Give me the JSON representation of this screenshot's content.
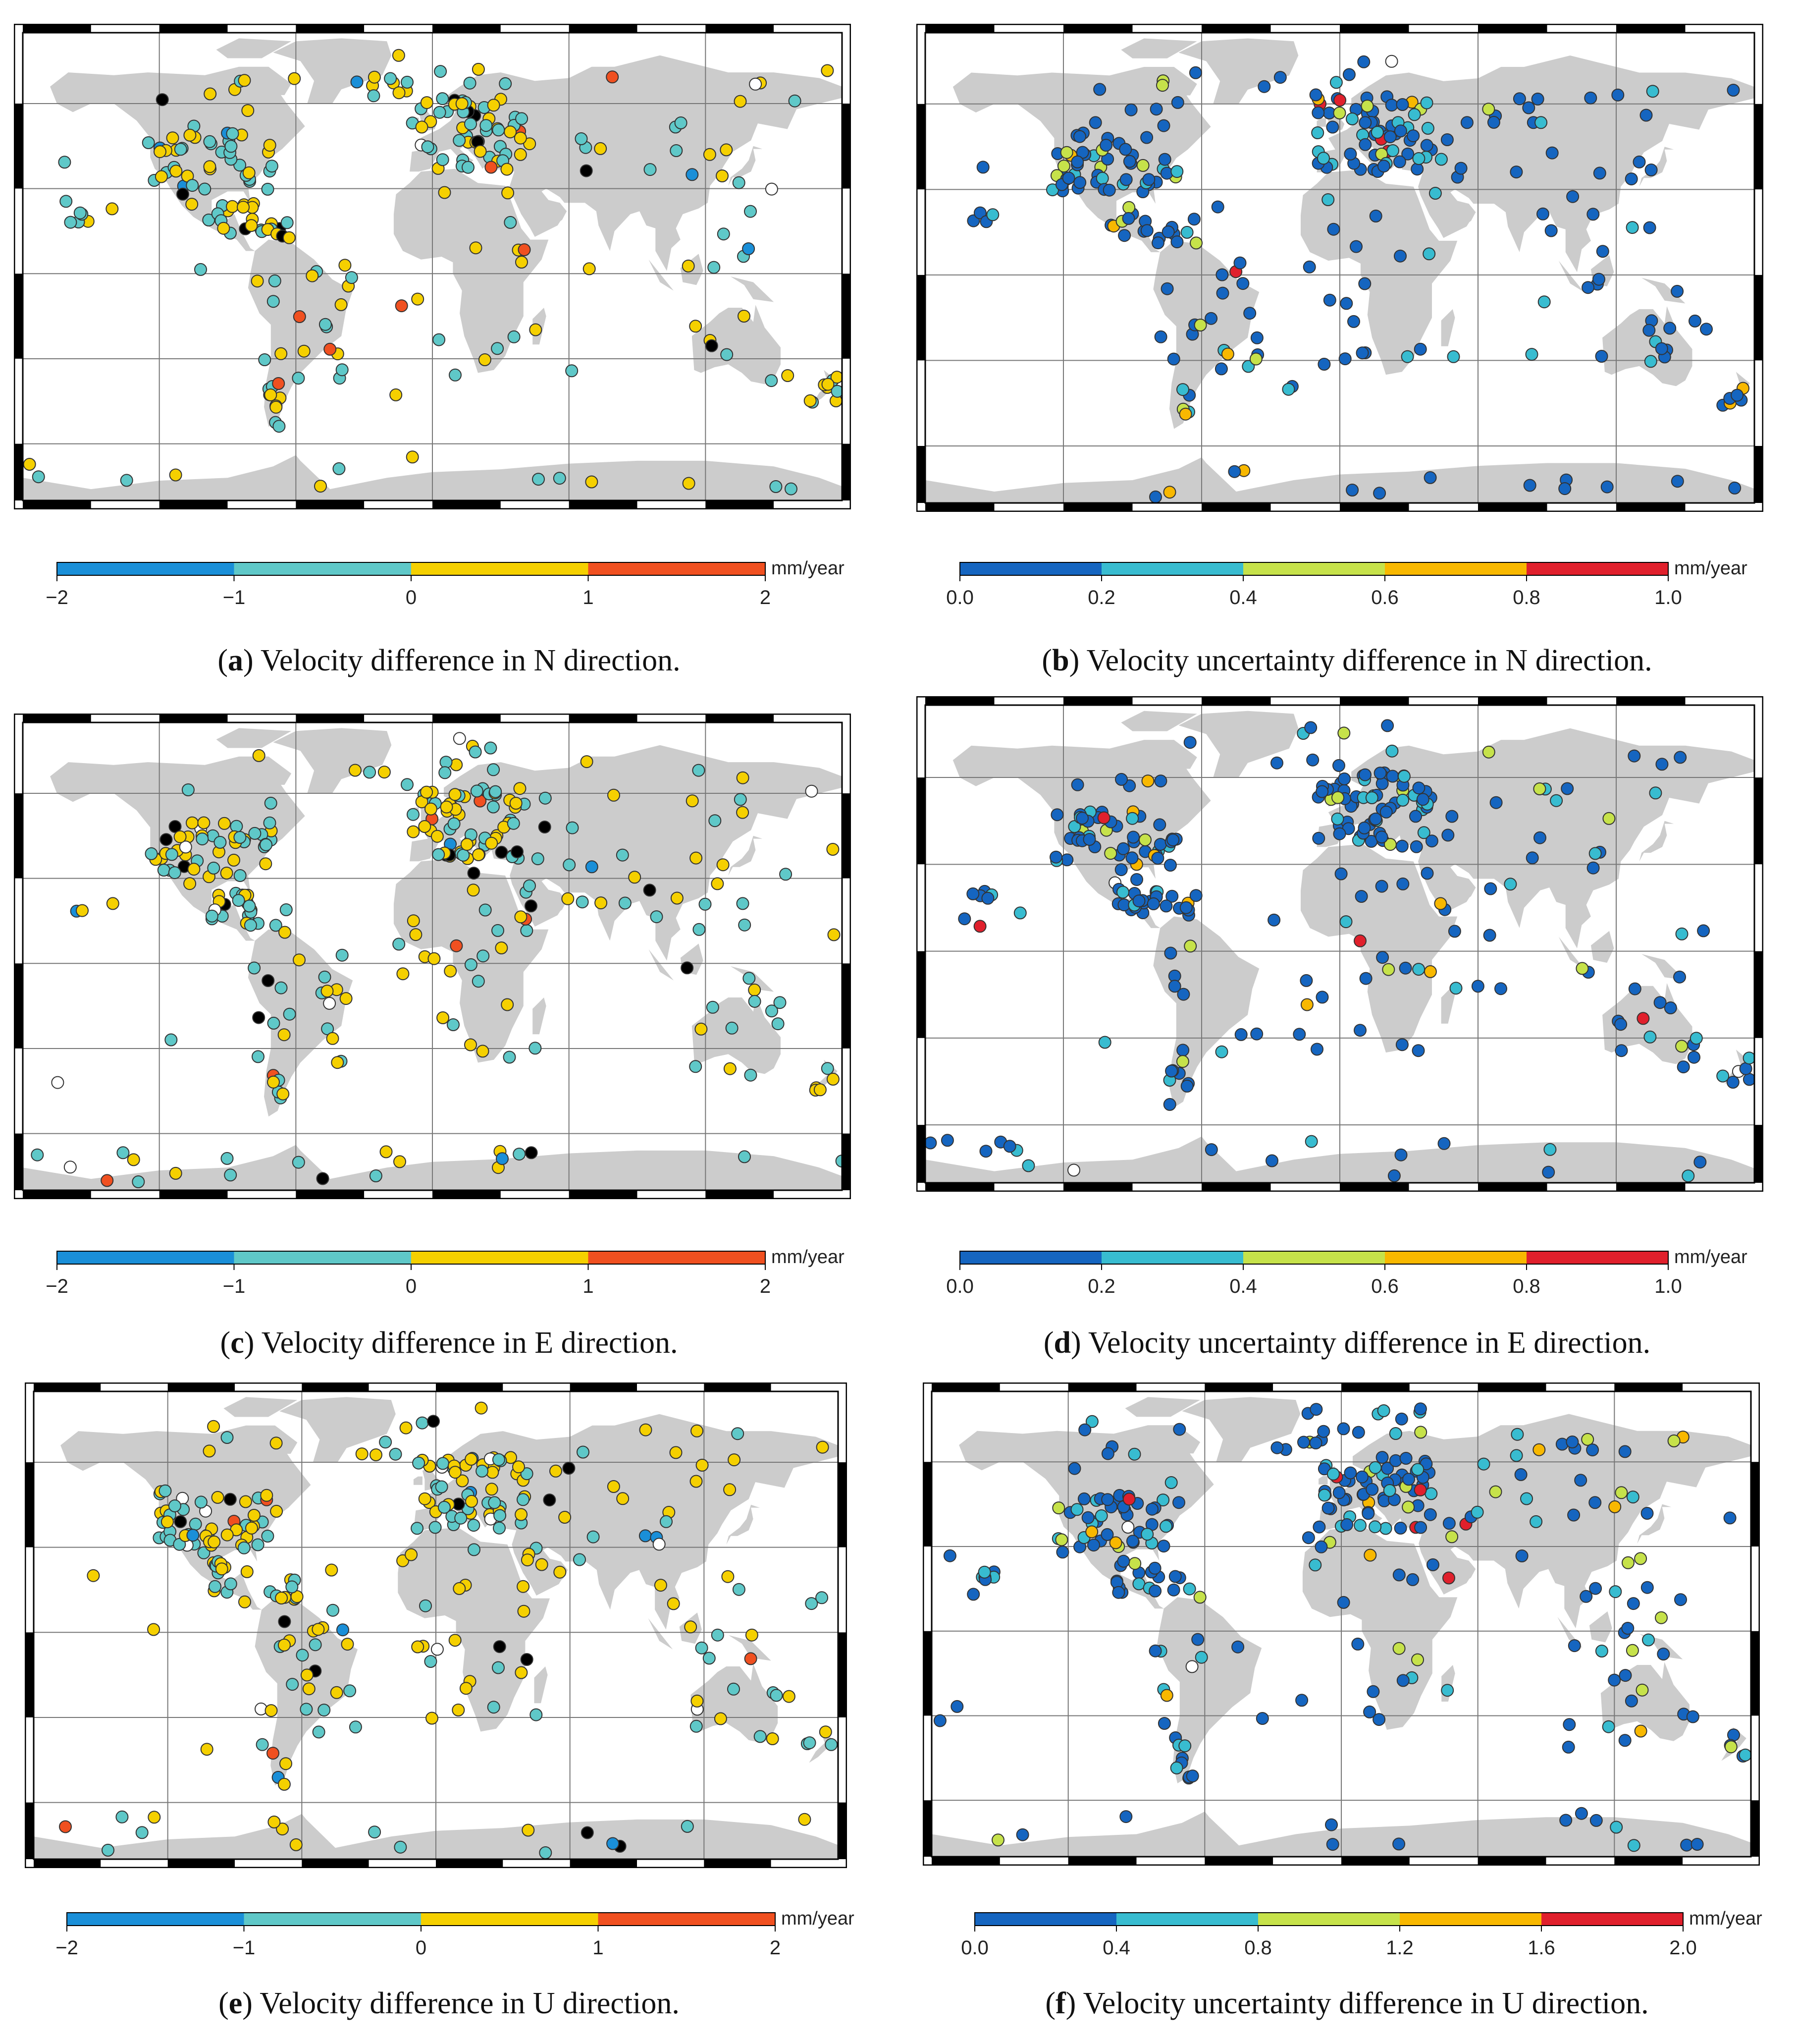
{
  "colors": {
    "land": "#cccccc",
    "ocean": "#ffffff",
    "grid": "#777777",
    "frame": "#000000",
    "diff_scale": [
      "#1a8fd8",
      "#5fc8c8",
      "#f5d000",
      "#f05020"
    ],
    "unc_scale": [
      "#1565c0",
      "#38bcd0",
      "#c6e24a",
      "#f8b800",
      "#e0202c"
    ],
    "extreme_low": "#000000",
    "extreme_high": "#ffffff"
  },
  "panels": [
    {
      "letter": "a",
      "caption_text": "Velocity difference in N direction.",
      "colorbar": {
        "ticks": [
          "−2",
          "−1",
          "0",
          "1",
          "2"
        ],
        "unit": "mm/year",
        "scale": "diff"
      },
      "stations": {
        "blue": 6,
        "teal": 120,
        "yellow": 110,
        "red": 8,
        "black": 12,
        "white": 3
      }
    },
    {
      "letter": "b",
      "caption_text": "Velocity uncertainty difference in N direction.",
      "colorbar": {
        "ticks": [
          "0.0",
          "0.2",
          "0.4",
          "0.6",
          "0.8",
          "1.0"
        ],
        "unit": "mm/year",
        "scale": "unc"
      },
      "stations": {
        "navy": 190,
        "cyan": 45,
        "lime": 20,
        "orange": 10,
        "red": 5,
        "white": 1
      }
    },
    {
      "letter": "c",
      "caption_text": "Velocity difference in E direction.",
      "colorbar": {
        "ticks": [
          "−2",
          "−1",
          "0",
          "1",
          "2"
        ],
        "unit": "mm/year",
        "scale": "diff"
      },
      "stations": {
        "blue": 4,
        "teal": 130,
        "yellow": 120,
        "red": 6,
        "black": 18,
        "white": 8
      }
    },
    {
      "letter": "d",
      "caption_text": "Velocity uncertainty difference in E direction.",
      "colorbar": {
        "ticks": [
          "0.0",
          "0.2",
          "0.4",
          "0.6",
          "0.8",
          "1.0"
        ],
        "unit": "mm/year",
        "scale": "unc"
      },
      "stations": {
        "navy": 195,
        "cyan": 50,
        "lime": 18,
        "orange": 8,
        "red": 4,
        "white": 3
      }
    },
    {
      "letter": "e",
      "caption_text": "Velocity difference in U direction.",
      "colorbar": {
        "ticks": [
          "−2",
          "−1",
          "0",
          "1",
          "2"
        ],
        "unit": "mm/year",
        "scale": "diff"
      },
      "stations": {
        "blue": 8,
        "teal": 110,
        "yellow": 130,
        "red": 5,
        "black": 12,
        "white": 10
      }
    },
    {
      "letter": "f",
      "caption_text": "Velocity uncertainty difference in U direction.",
      "colorbar": {
        "ticks": [
          "0.0",
          "0.4",
          "0.8",
          "1.2",
          "1.6",
          "2.0"
        ],
        "unit": "mm/year",
        "scale": "unc"
      },
      "stations": {
        "navy": 175,
        "cyan": 60,
        "lime": 25,
        "orange": 10,
        "red": 6,
        "white": 2
      }
    }
  ]
}
